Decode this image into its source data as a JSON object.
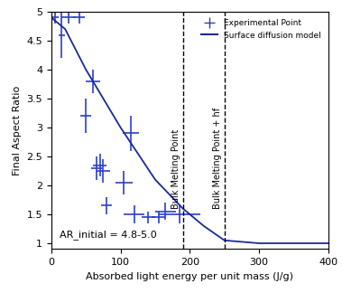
{
  "chart_data": {
    "type": "scatter",
    "xlabel": "Absorbed light energy per unit mass (J/g)",
    "ylabel": "Final Aspect Ratio",
    "xlim": [
      0,
      400
    ],
    "xticks": [
      0,
      100,
      200,
      300,
      400
    ],
    "ylim": [
      0.9,
      5
    ],
    "yticks": [
      1,
      1.5,
      2,
      2.5,
      3,
      3.5,
      4,
      4.5,
      5
    ],
    "legend": "upper right",
    "series": [
      {
        "name": "Experimental Point",
        "type": "scatter",
        "color": "#2b3fc4",
        "marker": "none",
        "x": [
          5,
          15,
          25,
          40,
          50,
          60,
          65,
          70,
          75,
          80,
          105,
          115,
          120,
          140,
          155,
          165,
          185
        ],
        "values": [
          4.9,
          4.6,
          4.9,
          4.9,
          3.2,
          3.8,
          2.3,
          2.35,
          2.25,
          1.65,
          2.05,
          2.9,
          1.5,
          1.45,
          1.45,
          1.55,
          1.5
        ],
        "x_error": [
          5,
          5,
          10,
          8,
          8,
          10,
          8,
          10,
          10,
          8,
          12,
          12,
          15,
          10,
          10,
          15,
          30
        ],
        "y_error": [
          0.1,
          0.4,
          0.1,
          0.1,
          0.3,
          0.2,
          0.2,
          0.2,
          0.2,
          0.15,
          0.2,
          0.3,
          0.15,
          0.1,
          0.1,
          0.15,
          0.15
        ]
      },
      {
        "name": "Surface diffusion model",
        "type": "line",
        "color": "#1a2a9a",
        "line_style": "solid",
        "x": [
          0,
          20,
          50,
          100,
          150,
          190,
          220,
          250,
          300,
          400
        ],
        "values": [
          4.9,
          4.7,
          4.0,
          3.0,
          2.1,
          1.6,
          1.3,
          1.05,
          1.0,
          1.0
        ]
      }
    ],
    "annotations": [
      {
        "text": "Bulk Melting Point",
        "x": 190,
        "line_style": "dashed"
      },
      {
        "text": "Bulk Melting Point + hf",
        "x": 250,
        "line_style": "dashed"
      },
      {
        "text": "AR_initial = 4.8-5.0"
      }
    ]
  }
}
